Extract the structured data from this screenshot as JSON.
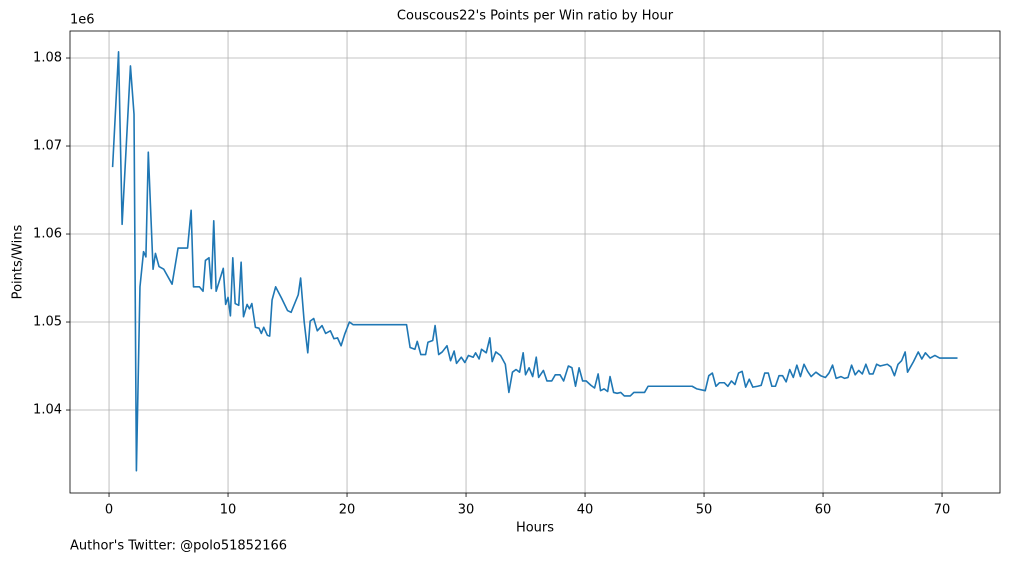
{
  "chart_data": {
    "type": "line",
    "title": "Couscous22's Points per Win ratio by Hour",
    "xlabel": "Hours",
    "ylabel": "Points/Wins",
    "y_offset_label": "1e6",
    "footer": "Author's Twitter: @polo51852166",
    "xlim": [
      -3.28,
      74.87
    ],
    "ylim": [
      1.03057,
      1.08307
    ],
    "xticks": [
      0,
      10,
      20,
      30,
      40,
      50,
      60,
      70
    ],
    "yticks": [
      1.04,
      1.05,
      1.06,
      1.07,
      1.08
    ],
    "grid": true,
    "series": [
      {
        "color": "#1f77b4",
        "x": [
          0.3,
          0.8,
          1.1,
          1.8,
          2.1,
          2.3,
          2.6,
          2.9,
          3.1,
          3.3,
          3.7,
          3.9,
          4.2,
          4.6,
          5.3,
          5.8,
          6.6,
          6.9,
          7.1,
          7.6,
          7.9,
          8.1,
          8.4,
          8.6,
          8.8,
          9.0,
          9.6,
          9.8,
          10.0,
          10.2,
          10.4,
          10.6,
          10.9,
          11.1,
          11.3,
          11.6,
          11.8,
          12.0,
          12.3,
          12.6,
          12.8,
          13.0,
          13.3,
          13.5,
          13.7,
          14.0,
          14.5,
          15.0,
          15.3,
          15.9,
          16.1,
          16.4,
          16.7,
          16.9,
          17.2,
          17.5,
          17.9,
          18.2,
          18.6,
          18.9,
          19.2,
          19.5,
          19.8,
          20.2,
          20.5,
          25.0,
          25.3,
          25.7,
          25.9,
          26.2,
          26.6,
          26.8,
          27.2,
          27.4,
          27.7,
          28.0,
          28.4,
          28.7,
          29.0,
          29.2,
          29.6,
          29.9,
          30.2,
          30.6,
          30.8,
          31.1,
          31.3,
          31.7,
          32.0,
          32.2,
          32.5,
          32.9,
          33.3,
          33.6,
          33.9,
          34.2,
          34.5,
          34.8,
          35.0,
          35.3,
          35.6,
          35.9,
          36.1,
          36.5,
          36.8,
          37.2,
          37.5,
          37.9,
          38.2,
          38.6,
          38.9,
          39.2,
          39.5,
          39.8,
          40.1,
          40.5,
          40.8,
          41.1,
          41.3,
          41.6,
          41.9,
          42.1,
          42.4,
          42.7,
          43.0,
          43.3,
          43.8,
          44.1,
          45.0,
          45.3,
          49.0,
          49.4,
          50.1,
          50.4,
          50.7,
          51.0,
          51.3,
          51.7,
          52.0,
          52.3,
          52.6,
          52.9,
          53.2,
          53.5,
          53.8,
          54.1,
          54.5,
          54.8,
          55.1,
          55.4,
          55.7,
          56.0,
          56.3,
          56.6,
          56.9,
          57.2,
          57.5,
          57.8,
          58.1,
          58.4,
          58.7,
          59.0,
          59.4,
          59.8,
          60.2,
          60.5,
          60.8,
          61.1,
          61.5,
          61.8,
          62.1,
          62.4,
          62.7,
          63.0,
          63.3,
          63.6,
          63.9,
          64.2,
          64.5,
          64.8,
          65.1,
          65.4,
          65.7,
          66.0,
          66.3,
          66.6,
          66.9,
          67.1,
          67.6,
          68.0,
          68.3,
          68.6,
          69.0,
          69.4,
          69.8,
          71.3
        ],
        "values": [
          1.0676,
          1.0807,
          1.0611,
          1.0791,
          1.0736,
          1.0331,
          1.054,
          1.058,
          1.0574,
          1.0693,
          1.056,
          1.0578,
          1.0563,
          1.056,
          1.0543,
          1.0584,
          1.0584,
          1.0627,
          1.054,
          1.054,
          1.0535,
          1.057,
          1.0573,
          1.0538,
          1.0615,
          1.0535,
          1.0561,
          1.052,
          1.0528,
          1.0507,
          1.0573,
          1.0521,
          1.0519,
          1.0568,
          1.0506,
          1.052,
          1.0515,
          1.0521,
          1.0494,
          1.0493,
          1.0487,
          1.0494,
          1.0485,
          1.0484,
          1.0525,
          1.054,
          1.0527,
          1.0513,
          1.0511,
          1.0531,
          1.055,
          1.05,
          1.0465,
          1.0501,
          1.0504,
          1.049,
          1.0496,
          1.0487,
          1.049,
          1.0481,
          1.0482,
          1.0473,
          1.0486,
          1.05,
          1.0497,
          1.0497,
          1.0471,
          1.0469,
          1.0478,
          1.0463,
          1.0463,
          1.0477,
          1.0479,
          1.0496,
          1.0463,
          1.0466,
          1.0473,
          1.0456,
          1.0467,
          1.0453,
          1.046,
          1.0454,
          1.0462,
          1.046,
          1.0465,
          1.0458,
          1.0469,
          1.0465,
          1.0482,
          1.0455,
          1.0466,
          1.0462,
          1.0452,
          1.042,
          1.0443,
          1.0446,
          1.0443,
          1.0465,
          1.044,
          1.0448,
          1.0438,
          1.046,
          1.0437,
          1.0445,
          1.0433,
          1.0433,
          1.044,
          1.044,
          1.0433,
          1.045,
          1.0448,
          1.0427,
          1.0448,
          1.0433,
          1.0433,
          1.0428,
          1.0425,
          1.0441,
          1.0422,
          1.0424,
          1.0421,
          1.0438,
          1.042,
          1.0419,
          1.042,
          1.0416,
          1.0416,
          1.042,
          1.042,
          1.0427,
          1.0427,
          1.0424,
          1.0422,
          1.0439,
          1.0442,
          1.0427,
          1.0431,
          1.0431,
          1.0427,
          1.0433,
          1.0429,
          1.0442,
          1.0444,
          1.0426,
          1.0435,
          1.0426,
          1.0427,
          1.0428,
          1.0442,
          1.0442,
          1.0427,
          1.0427,
          1.0439,
          1.0439,
          1.0432,
          1.0446,
          1.0437,
          1.0451,
          1.0438,
          1.0452,
          1.0444,
          1.0438,
          1.0443,
          1.0439,
          1.0437,
          1.0442,
          1.0451,
          1.0436,
          1.0438,
          1.0436,
          1.0437,
          1.0451,
          1.044,
          1.0445,
          1.0441,
          1.0452,
          1.0441,
          1.0441,
          1.0452,
          1.045,
          1.0451,
          1.0452,
          1.0449,
          1.0439,
          1.0452,
          1.0456,
          1.0466,
          1.0443,
          1.0455,
          1.0466,
          1.0458,
          1.0465,
          1.0459,
          1.0462,
          1.0459,
          1.0459
        ]
      }
    ]
  }
}
